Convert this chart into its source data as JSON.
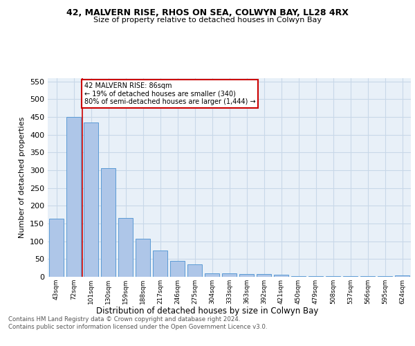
{
  "title1": "42, MALVERN RISE, RHOS ON SEA, COLWYN BAY, LL28 4RX",
  "title2": "Size of property relative to detached houses in Colwyn Bay",
  "xlabel": "Distribution of detached houses by size in Colwyn Bay",
  "ylabel": "Number of detached properties",
  "categories": [
    "43sqm",
    "72sqm",
    "101sqm",
    "130sqm",
    "159sqm",
    "188sqm",
    "217sqm",
    "246sqm",
    "275sqm",
    "304sqm",
    "333sqm",
    "363sqm",
    "392sqm",
    "421sqm",
    "450sqm",
    "479sqm",
    "508sqm",
    "537sqm",
    "566sqm",
    "595sqm",
    "624sqm"
  ],
  "values": [
    163,
    450,
    435,
    306,
    165,
    107,
    74,
    44,
    35,
    10,
    10,
    7,
    7,
    5,
    2,
    2,
    1,
    1,
    1,
    1,
    4
  ],
  "bar_color": "#aec6e8",
  "bar_edge_color": "#5b9bd5",
  "grid_color": "#c8d8e8",
  "background_color": "#e8f0f8",
  "annotation_box_color": "#ffffff",
  "annotation_border_color": "#cc0000",
  "vline_color": "#cc0000",
  "vline_x": 1.5,
  "annotation_text": "42 MALVERN RISE: 86sqm\n← 19% of detached houses are smaller (340)\n80% of semi-detached houses are larger (1,444) →",
  "footer_text": "Contains HM Land Registry data © Crown copyright and database right 2024.\nContains public sector information licensed under the Open Government Licence v3.0.",
  "ylim": [
    0,
    560
  ],
  "yticks": [
    0,
    50,
    100,
    150,
    200,
    250,
    300,
    350,
    400,
    450,
    500,
    550
  ]
}
